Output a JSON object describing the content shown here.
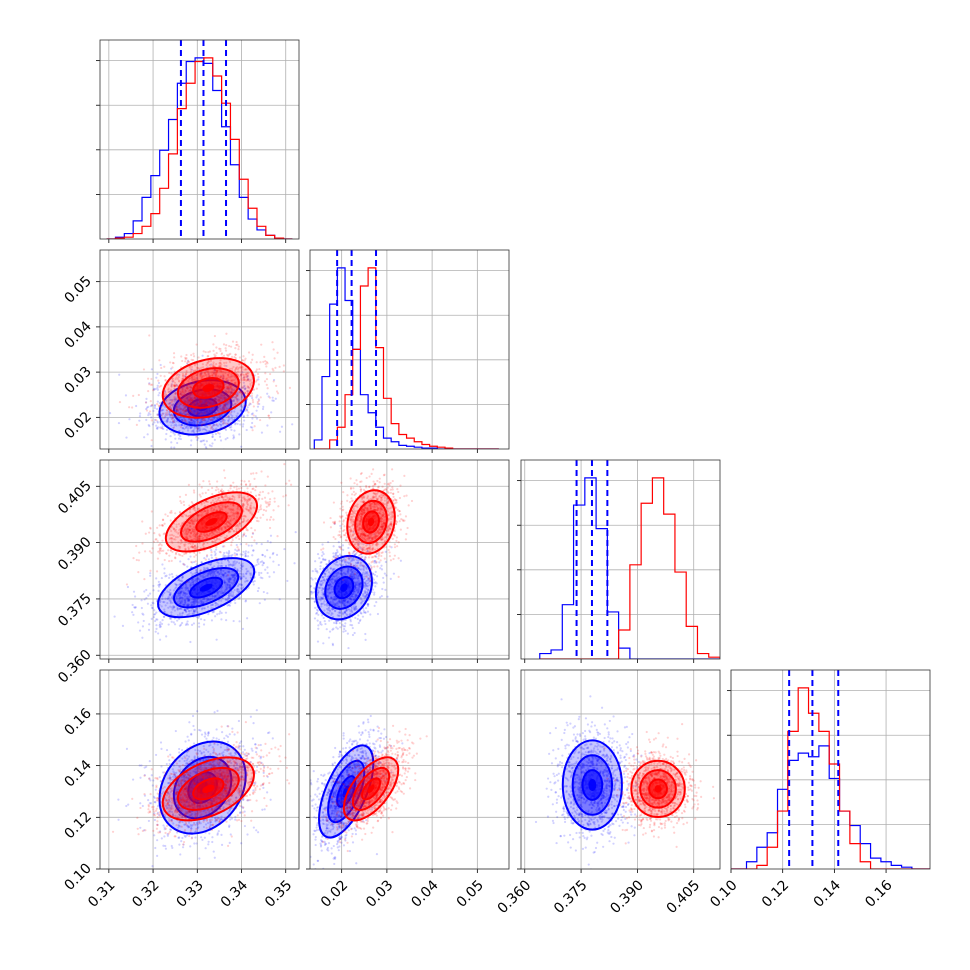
{
  "chart_data": {
    "type": "corner",
    "grid": true,
    "series": [
      {
        "color": "#0000ff"
      },
      {
        "color": "#ff0000"
      }
    ],
    "parameters": [
      {
        "range": [
          0.308,
          0.353
        ],
        "ticks": [
          "0.31",
          "0.32",
          "0.33",
          "0.34",
          "0.35"
        ]
      },
      {
        "range": [
          0.013,
          0.057
        ],
        "ticks": [
          "0.02",
          "0.03",
          "0.04",
          "0.05"
        ]
      },
      {
        "range": [
          0.359,
          0.412
        ],
        "ticks": [
          "0.360",
          "0.375",
          "0.390",
          "0.405"
        ]
      },
      {
        "range": [
          0.1,
          0.177
        ],
        "ticks": [
          "0.10",
          "0.12",
          "0.14",
          "0.16"
        ]
      }
    ],
    "histograms": [
      {
        "bins": [
          0.3105,
          0.3125,
          0.3145,
          0.3165,
          0.3185,
          0.3205,
          0.3225,
          0.3245,
          0.3265,
          0.3285,
          0.3305,
          0.3325,
          0.3345,
          0.3365,
          0.3385,
          0.3405,
          0.3425,
          0.3445,
          0.3465,
          0.3485,
          0.3505
        ],
        "blue": [
          0.0,
          0.01,
          0.03,
          0.1,
          0.23,
          0.35,
          0.49,
          0.66,
          0.86,
          0.98,
          1.0,
          0.97,
          0.82,
          0.62,
          0.41,
          0.23,
          0.11,
          0.05,
          0.02,
          0.005,
          0.0
        ],
        "red": [
          0.0,
          0.005,
          0.01,
          0.03,
          0.07,
          0.14,
          0.28,
          0.47,
          0.72,
          0.86,
          0.98,
          1.0,
          0.9,
          0.75,
          0.55,
          0.33,
          0.17,
          0.07,
          0.02,
          0.005,
          0.0
        ],
        "quantiles": [
          0.3263,
          0.3314,
          0.3365
        ]
      },
      {
        "bins": [
          0.0148,
          0.0165,
          0.0182,
          0.0199,
          0.0216,
          0.0233,
          0.025,
          0.0267,
          0.0284,
          0.0301,
          0.0318,
          0.0335,
          0.0352,
          0.0369,
          0.0386,
          0.0403,
          0.042,
          0.0437,
          0.0454,
          0.0471,
          0.0488,
          0.0505,
          0.0522,
          0.0539
        ],
        "blue": [
          0.05,
          0.4,
          0.8,
          1.0,
          0.82,
          0.55,
          0.3,
          0.2,
          0.12,
          0.06,
          0.04,
          0.02,
          0.015,
          0.01,
          0.005,
          0.005,
          0.0,
          0.0,
          0.0,
          0.0,
          0.0,
          0.0,
          0.0,
          0.0
        ],
        "red": [
          0.0,
          0.0,
          0.05,
          0.12,
          0.3,
          0.55,
          0.9,
          1.0,
          0.56,
          0.28,
          0.14,
          0.08,
          0.06,
          0.04,
          0.025,
          0.015,
          0.01,
          0.005,
          0.0,
          0.0,
          0.0,
          0.0,
          0.0,
          0.0
        ],
        "quantiles": [
          0.019,
          0.0222,
          0.0276
        ]
      },
      {
        "bins": [
          0.3655,
          0.3685,
          0.3715,
          0.3745,
          0.3775,
          0.3805,
          0.3835,
          0.3865,
          0.3895,
          0.3925,
          0.3955,
          0.3985,
          0.4015,
          0.4045,
          0.4075,
          0.4105
        ],
        "blue": [
          0.03,
          0.05,
          0.3,
          0.85,
          1.0,
          0.72,
          0.26,
          0.06,
          0.0,
          0.0,
          0.0,
          0.0,
          0.0,
          0.0,
          0.0,
          0.0
        ],
        "red": [
          0.0,
          0.0,
          0.0,
          0.0,
          0.0,
          0.0,
          0.0,
          0.16,
          0.52,
          0.86,
          1.0,
          0.8,
          0.48,
          0.18,
          0.03,
          0.01
        ],
        "quantiles": [
          0.3738,
          0.3779,
          0.382
        ]
      },
      {
        "bins": [
          0.1,
          0.104,
          0.108,
          0.112,
          0.116,
          0.12,
          0.124,
          0.128,
          0.132,
          0.136,
          0.14,
          0.144,
          0.148,
          0.152,
          0.156,
          0.16,
          0.164,
          0.168,
          0.172,
          0.176
        ],
        "blue": [
          0.0,
          0.0,
          0.04,
          0.12,
          0.2,
          0.44,
          0.6,
          0.64,
          0.62,
          0.68,
          0.5,
          0.32,
          0.24,
          0.14,
          0.06,
          0.04,
          0.02,
          0.01,
          0.0,
          0.0
        ],
        "red": [
          0.0,
          0.0,
          0.0,
          0.02,
          0.12,
          0.32,
          0.76,
          1.0,
          0.86,
          0.76,
          0.58,
          0.32,
          0.14,
          0.04,
          0.0,
          0.0,
          0.0,
          0.0,
          0.0,
          0.0
        ],
        "quantiles": [
          0.1225,
          0.1315,
          0.1415
        ]
      }
    ],
    "contours": {
      "levels_sigma": [
        0.5,
        1.0,
        1.5
      ],
      "pairs": [
        {
          "x_param": 0,
          "y_param": 1,
          "blue": {
            "mean": [
              0.3312,
              0.0222
            ],
            "std": [
              0.0052,
              0.0032
            ],
            "rho": 0.2
          },
          "red": {
            "mean": [
              0.3325,
              0.0265
            ],
            "std": [
              0.0055,
              0.0035
            ],
            "rho": 0.25
          }
        },
        {
          "x_param": 0,
          "y_param": 2,
          "blue": {
            "mean": [
              0.332,
              0.378
            ],
            "std": [
              0.0058,
              0.0042
            ],
            "rho": 0.55
          },
          "red": {
            "mean": [
              0.3332,
              0.3955
            ],
            "std": [
              0.0055,
              0.0042
            ],
            "rho": 0.55
          }
        },
        {
          "x_param": 1,
          "y_param": 2,
          "blue": {
            "mean": [
              0.0205,
              0.378
            ],
            "std": [
              0.0033,
              0.0045
            ],
            "rho": 0.2
          },
          "red": {
            "mean": [
              0.0265,
              0.3955
            ],
            "std": [
              0.0028,
              0.0045
            ],
            "rho": 0.15
          }
        },
        {
          "x_param": 0,
          "y_param": 3,
          "blue": {
            "mean": [
              0.3312,
              0.1315
            ],
            "std": [
              0.0052,
              0.0095
            ],
            "rho": 0.25
          },
          "red": {
            "mean": [
              0.3325,
              0.131
            ],
            "std": [
              0.0055,
              0.0065
            ],
            "rho": 0.45
          }
        },
        {
          "x_param": 1,
          "y_param": 3,
          "blue": {
            "mean": [
              0.021,
              0.13
            ],
            "std": [
              0.0032,
              0.0095
            ],
            "rho": 0.6
          },
          "red": {
            "mean": [
              0.0265,
              0.131
            ],
            "std": [
              0.0032,
              0.0065
            ],
            "rho": 0.6
          }
        },
        {
          "x_param": 2,
          "y_param": 3,
          "blue": {
            "mean": [
              0.378,
              0.1325
            ],
            "std": [
              0.0042,
              0.0092
            ],
            "rho": 0.0
          },
          "red": {
            "mean": [
              0.3955,
              0.131
            ],
            "std": [
              0.0038,
              0.0058
            ],
            "rho": 0.0
          }
        }
      ]
    }
  }
}
